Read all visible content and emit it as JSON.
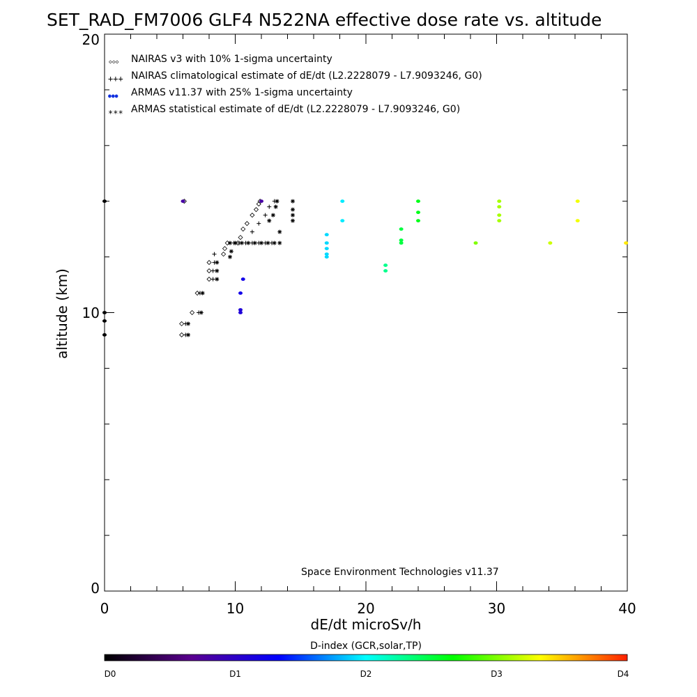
{
  "chart_data": {
    "type": "scatter",
    "title": "SET_RAD_FM7006  GLF4 N522NA effective dose rate vs. altitude",
    "xlabel": "dE/dt microSv/h",
    "ylabel": "altitude (km)",
    "xlim": [
      0,
      40
    ],
    "ylim": [
      0,
      20
    ],
    "x_ticks": [
      "0",
      "10",
      "20",
      "30",
      "40"
    ],
    "y_ticks": [
      "0",
      "10",
      "20"
    ],
    "credit": "Space Environment Technologies v11.37",
    "legend_position": "top-left",
    "legend": [
      {
        "marker": "◇◇◇",
        "label": "NAIRAS v3 with 10% 1-sigma uncertainty"
      },
      {
        "marker": "+++",
        "label": "NAIRAS climatological estimate of dE/dt (L2.2228079 - L7.9093246, G0)"
      },
      {
        "marker": "●●●",
        "label": "ARMAS v11.37 with 25% 1-sigma uncertainty",
        "color": "#1030e0"
      },
      {
        "marker": "***",
        "label": "ARMAS statistical estimate of dE/dt (L2.2228079 - L7.9093246, G0)"
      }
    ],
    "colorbar": {
      "title": "D-index (GCR,solar,TP)",
      "labels": [
        {
          "text": "D0",
          "value": 0
        },
        {
          "text": "D1",
          "value": 1
        },
        {
          "text": "D2",
          "value": 2
        },
        {
          "text": "D3",
          "value": 3
        },
        {
          "text": "D4",
          "value": 4
        }
      ],
      "stops": [
        "#000000",
        "#5a0090",
        "#0000ff",
        "#00ffff",
        "#00ff00",
        "#ffff00",
        "#ff2000"
      ]
    },
    "series": [
      {
        "marker": "diamond",
        "points": [
          [
            10.2,
            12.5
          ],
          [
            10.4,
            12.7
          ],
          [
            10.6,
            13.0
          ],
          [
            10.9,
            13.2
          ],
          [
            11.3,
            13.5
          ],
          [
            11.6,
            13.7
          ],
          [
            11.8,
            13.9
          ],
          [
            11.9,
            14.0
          ],
          [
            9.4,
            12.5
          ],
          [
            9.2,
            12.3
          ],
          [
            9.1,
            12.1
          ],
          [
            8.0,
            11.8
          ],
          [
            8.0,
            11.5
          ],
          [
            8.0,
            11.2
          ],
          [
            7.1,
            10.7
          ],
          [
            6.7,
            10.0
          ],
          [
            5.9,
            9.6
          ],
          [
            5.9,
            9.2
          ],
          [
            6.1,
            14.0
          ]
        ]
      },
      {
        "marker": "plus",
        "points": [
          [
            9.9,
            12.5
          ],
          [
            10.3,
            12.5
          ],
          [
            10.8,
            12.5
          ],
          [
            11.3,
            12.5
          ],
          [
            11.8,
            12.5
          ],
          [
            12.3,
            12.5
          ],
          [
            12.8,
            12.5
          ],
          [
            11.3,
            12.9
          ],
          [
            11.8,
            13.2
          ],
          [
            12.3,
            13.5
          ],
          [
            12.6,
            13.8
          ],
          [
            13.0,
            14.0
          ],
          [
            8.4,
            12.1
          ],
          [
            8.4,
            11.8
          ],
          [
            8.3,
            11.5
          ],
          [
            8.3,
            11.2
          ],
          [
            7.3,
            10.7
          ],
          [
            7.2,
            10.0
          ],
          [
            6.2,
            9.6
          ],
          [
            6.2,
            9.2
          ]
        ]
      },
      {
        "marker": "dot",
        "points": [
          [
            0.0,
            14.0,
            0.0
          ],
          [
            0.0,
            10.0,
            0.0
          ],
          [
            0.0,
            9.7,
            0.0
          ],
          [
            0.0,
            9.2,
            0.0
          ],
          [
            6.0,
            14.0,
            0.8
          ],
          [
            12.0,
            14.0,
            0.8
          ],
          [
            10.6,
            11.2,
            1.2
          ],
          [
            10.4,
            10.7,
            1.2
          ],
          [
            10.4,
            10.1,
            1.1
          ],
          [
            10.4,
            10.0,
            1.1
          ],
          [
            17.0,
            12.8,
            1.9
          ],
          [
            17.0,
            12.5,
            1.9
          ],
          [
            17.0,
            12.3,
            1.9
          ],
          [
            17.0,
            12.1,
            1.9
          ],
          [
            17.0,
            12.0,
            1.9
          ],
          [
            18.2,
            14.0,
            1.95
          ],
          [
            18.2,
            13.3,
            1.95
          ],
          [
            21.5,
            11.7,
            2.3
          ],
          [
            21.5,
            11.5,
            2.3
          ],
          [
            22.7,
            13.0,
            2.5
          ],
          [
            22.7,
            12.5,
            2.5
          ],
          [
            22.7,
            12.6,
            2.5
          ],
          [
            24.0,
            14.0,
            2.6
          ],
          [
            24.0,
            13.6,
            2.6
          ],
          [
            24.0,
            13.3,
            2.6
          ],
          [
            28.4,
            12.5,
            3.0
          ],
          [
            30.2,
            14.0,
            3.1
          ],
          [
            30.2,
            13.8,
            3.1
          ],
          [
            30.2,
            13.5,
            3.1
          ],
          [
            30.2,
            13.3,
            3.1
          ],
          [
            34.1,
            12.5,
            3.2
          ],
          [
            36.2,
            14.0,
            3.3
          ],
          [
            36.2,
            13.3,
            3.3
          ],
          [
            39.9,
            12.5,
            3.4
          ]
        ]
      },
      {
        "marker": "asterisk",
        "points": [
          [
            9.6,
            12.5
          ],
          [
            10.0,
            12.5
          ],
          [
            10.5,
            12.5
          ],
          [
            11.0,
            12.5
          ],
          [
            11.5,
            12.5
          ],
          [
            12.0,
            12.5
          ],
          [
            12.5,
            12.5
          ],
          [
            13.0,
            12.5
          ],
          [
            13.4,
            12.5
          ],
          [
            13.4,
            12.9
          ],
          [
            14.4,
            14.0
          ],
          [
            14.4,
            13.7
          ],
          [
            14.4,
            13.5
          ],
          [
            14.4,
            13.3
          ],
          [
            12.6,
            13.3
          ],
          [
            12.9,
            13.5
          ],
          [
            13.1,
            13.8
          ],
          [
            13.2,
            14.0
          ],
          [
            9.7,
            12.2
          ],
          [
            9.6,
            12.0
          ],
          [
            8.6,
            11.8
          ],
          [
            8.6,
            11.5
          ],
          [
            8.6,
            11.2
          ],
          [
            7.5,
            10.7
          ],
          [
            7.4,
            10.0
          ],
          [
            6.4,
            9.6
          ],
          [
            6.4,
            9.2
          ]
        ]
      }
    ]
  }
}
